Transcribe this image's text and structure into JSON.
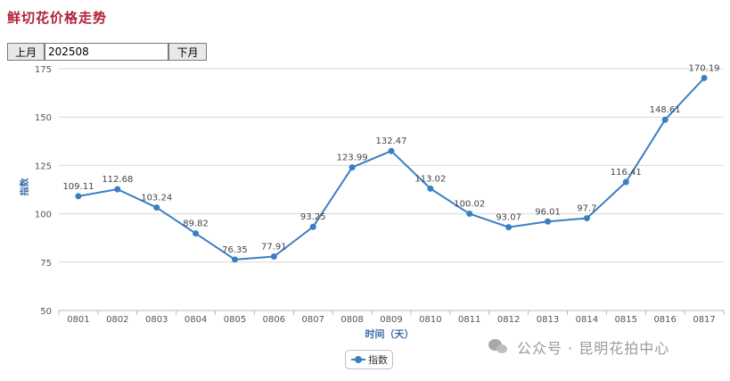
{
  "page_title": "鲜切花价格走势",
  "nav": {
    "prev_label": "上月",
    "month_value": "202508",
    "next_label": "下月"
  },
  "chart_data": {
    "type": "line",
    "title": "鲜切花价格走势",
    "xlabel": "时间（天）",
    "ylabel": "指数",
    "ylim": [
      50,
      175
    ],
    "yticks": [
      50,
      75,
      100,
      125,
      150,
      175
    ],
    "categories": [
      "0801",
      "0802",
      "0803",
      "0804",
      "0805",
      "0806",
      "0807",
      "0808",
      "0809",
      "0810",
      "0811",
      "0812",
      "0813",
      "0814",
      "0815",
      "0816",
      "0817"
    ],
    "series": [
      {
        "name": "指数",
        "color": "#3a7fc4",
        "values": [
          109.11,
          112.68,
          103.24,
          89.82,
          76.35,
          77.91,
          93.25,
          123.99,
          132.47,
          113.02,
          100.02,
          93.07,
          96.01,
          97.7,
          116.41,
          148.61,
          170.19
        ],
        "labels": [
          "109.11",
          "112.68",
          "103.24",
          "89.82",
          "76.35",
          "77.91",
          "93.25",
          "123.99",
          "132.47",
          "113.02",
          "100.02",
          "93.07",
          "96.01",
          "97.7",
          "116.41",
          "148.61",
          "170.19"
        ]
      }
    ],
    "legend": "bottom-center",
    "grid": true
  },
  "watermark": "公众号 · 昆明花拍中心"
}
